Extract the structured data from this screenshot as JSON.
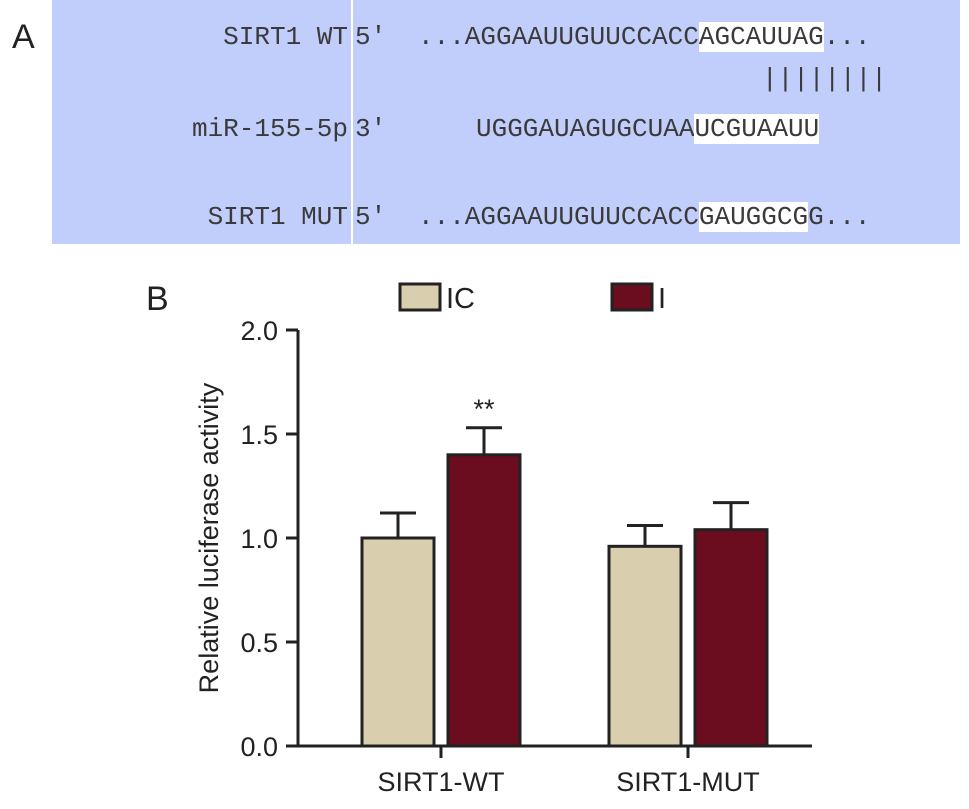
{
  "panel_a": {
    "letter": "A",
    "rows": [
      {
        "name": "SIRT1 WT",
        "prime": "5'",
        "seq_pre": "...AGGAAUUGUUCCACC",
        "seq_hl": "AGCAUUAG",
        "seq_post": "..."
      },
      {
        "name": "miR-155-5p",
        "prime": "3'",
        "seq_pre": "UGGGAUAGUGCUAA",
        "seq_hl": "UCGUAAUU",
        "seq_post": ""
      },
      {
        "name": "SIRT1 MUT",
        "prime": "5'",
        "seq_pre": "...AGGAAUUGUUCCACC",
        "seq_hl": "GAUGGCG",
        "seq_post": "G..."
      }
    ],
    "pairing": "||||||||",
    "colors": {
      "panel_bg": "#c1cefb",
      "highlight_bg": "#ffffff"
    }
  },
  "panel_b": {
    "letter": "B"
  },
  "chart_data": {
    "type": "bar",
    "categories": [
      "SIRT1-WT",
      "SIRT1-MUT"
    ],
    "series": [
      {
        "name": "IC",
        "values": [
          1.0,
          0.96
        ],
        "errors": [
          0.12,
          0.1
        ],
        "color": "#d9cead"
      },
      {
        "name": "I",
        "values": [
          1.4,
          1.04
        ],
        "errors": [
          0.13,
          0.13
        ],
        "color": "#6b0d1e"
      }
    ],
    "annotations": [
      {
        "category": "SIRT1-WT",
        "series": "I",
        "text": "**"
      }
    ],
    "ylabel": "Relative luciferase activity",
    "xlabel": "",
    "ylim": [
      0,
      2.0
    ],
    "yticks": [
      0.0,
      0.5,
      1.0,
      1.5,
      2.0
    ],
    "ytick_labels": [
      "0.0",
      "0.5",
      "1.0",
      "1.5",
      "2.0"
    ],
    "legend_placement": "top-center",
    "grid": false
  }
}
